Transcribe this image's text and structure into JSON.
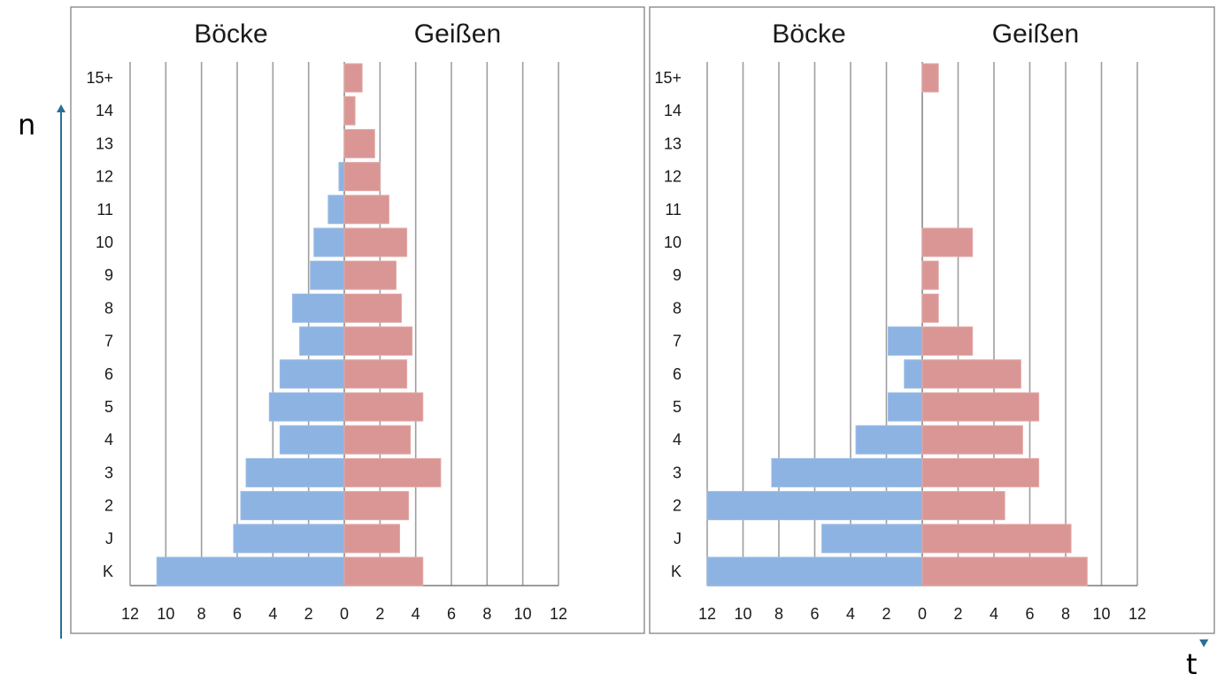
{
  "labels": {
    "left": "n",
    "bottom": "t"
  },
  "colors": {
    "male": "#8db3e2",
    "female": "#d99694",
    "frame": "#2a6f96"
  },
  "chart_data": [
    {
      "type": "bar",
      "orientation": "horizontal-population-pyramid",
      "categories": [
        "K",
        "J",
        "2",
        "3",
        "4",
        "5",
        "6",
        "7",
        "8",
        "9",
        "10",
        "11",
        "12",
        "13",
        "14",
        "15+"
      ],
      "header_left": "Böcke",
      "header_right": "Geißen",
      "xlim": [
        -12,
        12
      ],
      "xticks": [
        "12",
        "10",
        "8",
        "6",
        "4",
        "2",
        "0",
        "2",
        "4",
        "6",
        "8",
        "10",
        "12"
      ],
      "grid": true,
      "series": [
        {
          "name": "Böcke",
          "values": [
            10.5,
            6.2,
            5.8,
            5.5,
            3.6,
            4.2,
            3.6,
            2.5,
            2.9,
            1.9,
            1.7,
            0.9,
            0.3,
            0,
            0,
            0
          ]
        },
        {
          "name": "Geißen",
          "values": [
            4.4,
            3.1,
            3.6,
            5.4,
            3.7,
            4.4,
            3.5,
            3.8,
            3.2,
            2.9,
            3.5,
            2.5,
            2.0,
            1.7,
            0.6,
            1.0
          ]
        }
      ]
    },
    {
      "type": "bar",
      "orientation": "horizontal-population-pyramid",
      "categories": [
        "K",
        "J",
        "2",
        "3",
        "4",
        "5",
        "6",
        "7",
        "8",
        "9",
        "10",
        "11",
        "12",
        "13",
        "14",
        "15+"
      ],
      "header_left": "Böcke",
      "header_right": "Geißen",
      "xlim": [
        -12,
        12
      ],
      "xticks": [
        "12",
        "10",
        "8",
        "6",
        "4",
        "2",
        "0",
        "2",
        "4",
        "6",
        "8",
        "10",
        "12"
      ],
      "grid": true,
      "series": [
        {
          "name": "Böcke",
          "values": [
            12,
            5.6,
            12,
            8.4,
            3.7,
            1.9,
            1.0,
            1.9,
            0,
            0,
            0,
            0,
            0,
            0,
            0,
            0
          ]
        },
        {
          "name": "Geißen",
          "values": [
            9.2,
            8.3,
            4.6,
            6.5,
            5.6,
            6.5,
            5.5,
            2.8,
            0.9,
            0.9,
            2.8,
            0,
            0,
            0,
            0,
            0.9
          ]
        }
      ]
    }
  ]
}
